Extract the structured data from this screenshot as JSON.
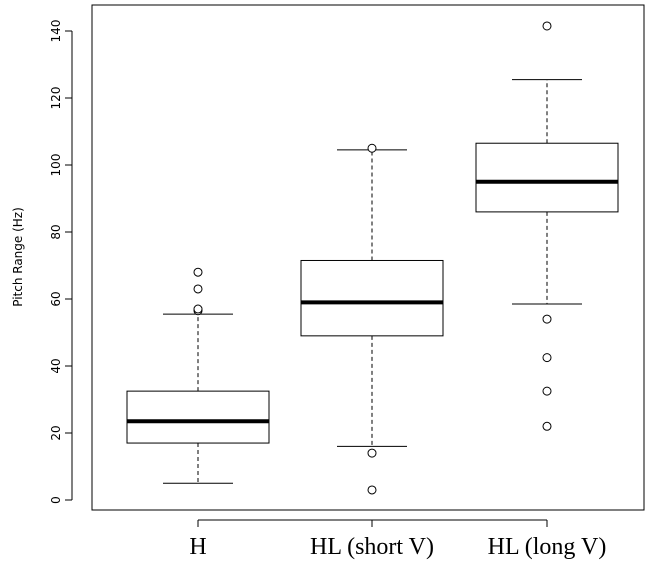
{
  "chart_data": {
    "type": "boxplot",
    "title": "",
    "xlabel": "",
    "ylabel": "Pitch Range (Hz)",
    "ylim": [
      -3,
      145
    ],
    "yticks": [
      0,
      20,
      40,
      60,
      80,
      100,
      120,
      140
    ],
    "grid": false,
    "categories": [
      "H",
      "HL (short V)",
      "HL (long V)"
    ],
    "boxes": [
      {
        "category": "H",
        "whisker_low": 5,
        "q1": 17,
        "median": 23.5,
        "q3": 32.5,
        "whisker_high": 55.5,
        "outliers": [
          56.5,
          57,
          63,
          68
        ]
      },
      {
        "category": "HL (short V)",
        "whisker_low": 16,
        "q1": 49,
        "median": 59,
        "q3": 71.5,
        "whisker_high": 104.5,
        "outliers": [
          3,
          14,
          105
        ]
      },
      {
        "category": "HL (long V)",
        "whisker_low": 58.5,
        "q1": 86,
        "median": 95,
        "q3": 106.5,
        "whisker_high": 125.5,
        "outliers": [
          22,
          32.5,
          42.5,
          54,
          141.5
        ]
      }
    ]
  }
}
